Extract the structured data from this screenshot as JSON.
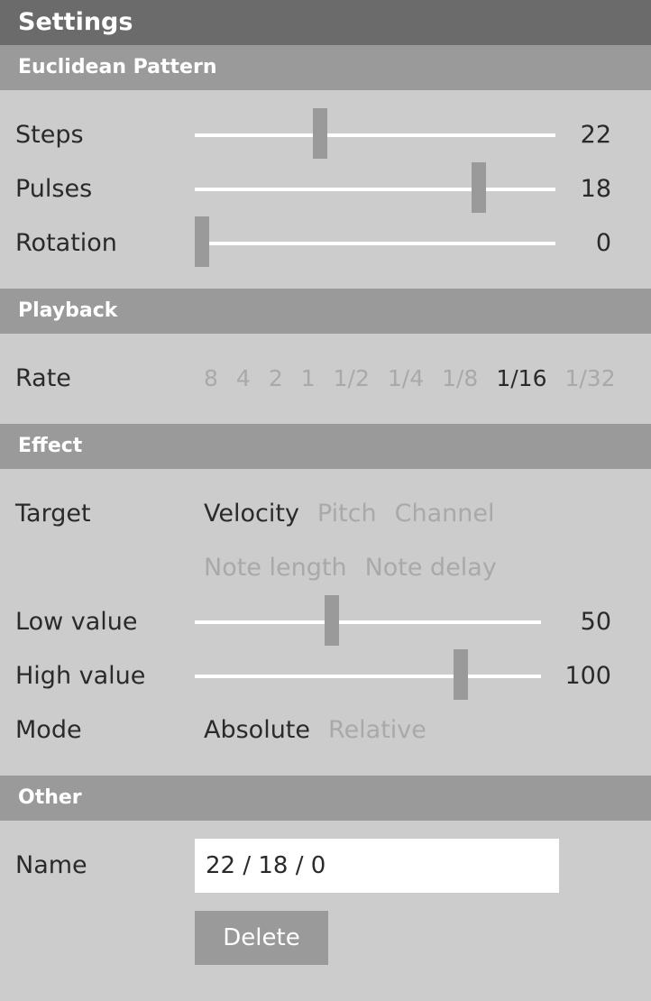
{
  "title": "Settings",
  "euclidean": {
    "header": "Euclidean Pattern",
    "steps": {
      "label": "Steps",
      "value": "22",
      "level": 0.34
    },
    "pulses": {
      "label": "Pulses",
      "value": "18",
      "level": 0.8
    },
    "rotation": {
      "label": "Rotation",
      "value": "0",
      "level": 0.0
    }
  },
  "playback": {
    "header": "Playback",
    "rate_label": "Rate",
    "rates": [
      "8",
      "4",
      "2",
      "1",
      "1/2",
      "1/4",
      "1/8",
      "1/16",
      "1/32"
    ],
    "selected_rate": "1/16"
  },
  "effect": {
    "header": "Effect",
    "target_label": "Target",
    "targets_row1": [
      "Velocity",
      "Pitch",
      "Channel"
    ],
    "targets_row2": [
      "Note length",
      "Note delay"
    ],
    "selected_target": "Velocity",
    "low": {
      "label": "Low value",
      "value": "50",
      "level": 0.39
    },
    "high": {
      "label": "High value",
      "value": "100",
      "level": 0.78
    },
    "mode_label": "Mode",
    "modes": [
      "Absolute",
      "Relative"
    ],
    "selected_mode": "Absolute"
  },
  "other": {
    "header": "Other",
    "name_label": "Name",
    "name_value": "22 / 18 / 0",
    "delete_label": "Delete"
  },
  "colors": {
    "background": "#cccccc",
    "titlebar": "#6b6b6b",
    "section_header": "#9a9a9a",
    "selected_text": "#2a2a2a",
    "unselected_text": "#a9a9a9",
    "slider_track": "#ffffff",
    "slider_thumb": "#9a9a9a"
  }
}
